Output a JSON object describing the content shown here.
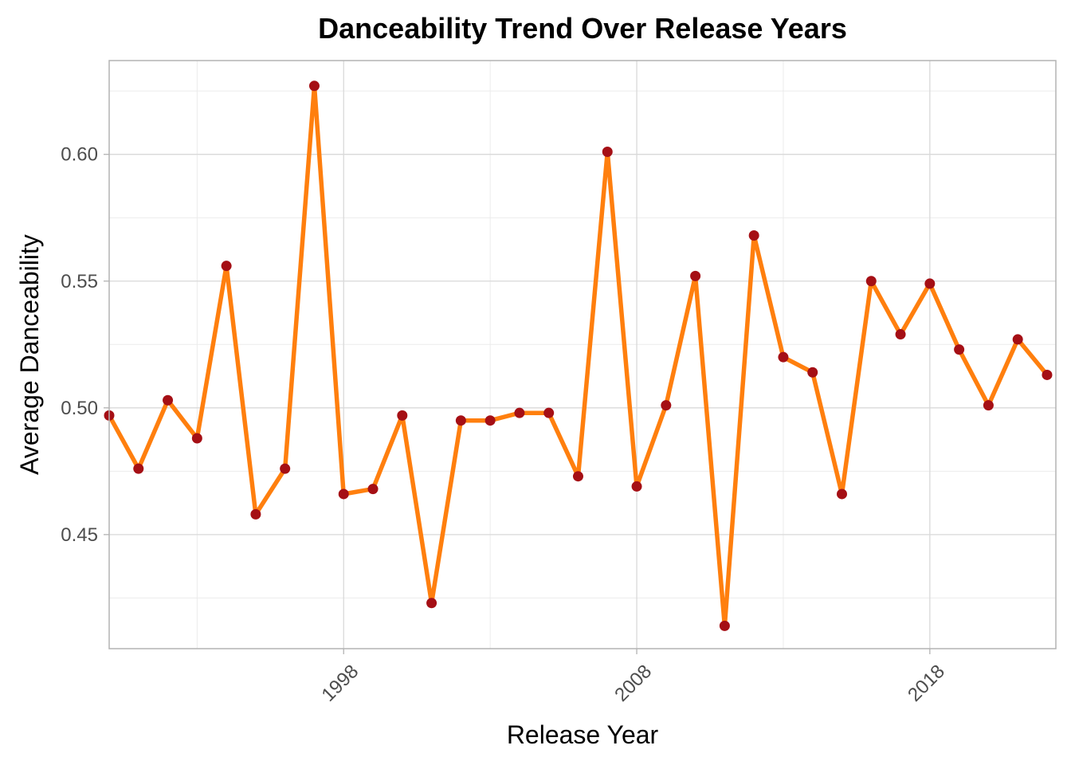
{
  "chart_data": {
    "type": "line",
    "title": "Danceability Trend Over Release Years",
    "xlabel": "Release Year",
    "ylabel": "Average Danceability",
    "xlim": [
      1990,
      2022.3
    ],
    "ylim": [
      0.405,
      0.637
    ],
    "x_ticks": [
      1998,
      2008,
      2018
    ],
    "x_minor_ticks": [
      1993,
      2003,
      2013
    ],
    "y_ticks": [
      0.45,
      0.5,
      0.55,
      0.6
    ],
    "y_tick_labels": [
      "0.45",
      "0.50",
      "0.55",
      "0.60"
    ],
    "y_minor_ticks": [
      0.425,
      0.475,
      0.525,
      0.575,
      0.625
    ],
    "grid": true,
    "legend": "none",
    "line_color": "#ff7f0e",
    "point_color": "#a50f15",
    "series": [
      {
        "x": [
          1990,
          1991,
          1992,
          1993,
          1994,
          1995,
          1996,
          1997,
          1998,
          1999,
          2000,
          2001,
          2002,
          2003,
          2004,
          2005,
          2006,
          2007,
          2008,
          2009,
          2010,
          2011,
          2012,
          2013,
          2014,
          2015,
          2016,
          2017,
          2018,
          2019,
          2020,
          2021,
          2022
        ],
        "y": [
          0.497,
          0.476,
          0.503,
          0.488,
          0.556,
          0.458,
          0.476,
          0.627,
          0.466,
          0.468,
          0.497,
          0.423,
          0.495,
          0.495,
          0.498,
          0.498,
          0.473,
          0.601,
          0.469,
          0.501,
          0.552,
          0.414,
          0.568,
          0.52,
          0.514,
          0.466,
          0.55,
          0.529,
          0.549,
          0.523,
          0.501,
          0.527,
          0.513
        ]
      }
    ]
  }
}
